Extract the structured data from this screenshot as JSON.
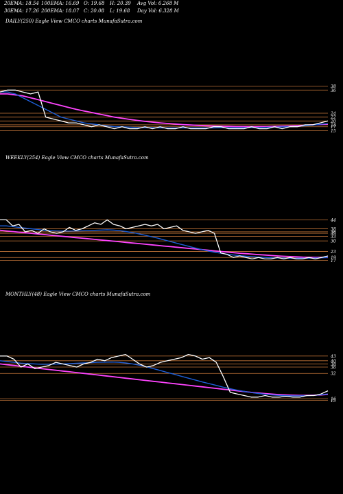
{
  "header": {
    "ema20": "20EMA: 18.54",
    "ema100": "100EMA: 16.69",
    "open": "O: 19.68",
    "high": "H: 20.39",
    "avg_vol": "Avg Vol: 6.268  M",
    "ema30": "30EMA: 17.26",
    "ema200": "200EMA: 18.07",
    "close": "C: 20.08",
    "low": "L: 19.68",
    "day_vol": "Day Vol: 6.328  M"
  },
  "colors": {
    "background": "#000000",
    "price": "#ffffff",
    "ema_fast": "#1e5fd8",
    "ema_slow": "#ff44ff",
    "level_line": "#c8783a",
    "grid_light": "#f2c8a0"
  },
  "chart_data": [
    {
      "type": "line",
      "title": "DAILY(250) Eagle  View  CMCO charts MunafaSutra.com",
      "right_labels": [
        "38",
        "36",
        "24",
        "22",
        "20",
        "18",
        "17",
        "15"
      ],
      "series": [
        {
          "values": [
            35,
            36,
            36,
            35,
            34,
            35,
            22,
            21,
            20,
            19,
            19,
            18,
            17,
            18,
            17,
            16,
            17,
            16,
            16,
            17,
            16,
            17,
            16,
            16,
            17,
            16,
            16,
            16,
            17,
            17,
            16,
            16,
            16,
            17,
            16,
            16,
            17,
            16,
            17,
            17,
            18,
            18,
            19,
            20
          ]
        },
        {
          "values": [
            35,
            35,
            34,
            32,
            30,
            28,
            26,
            24,
            22,
            21,
            20,
            19,
            18.5,
            18,
            17.5,
            17,
            17,
            16.8,
            16.6,
            16.5,
            16.5,
            16.4,
            16.4,
            16.4,
            16.4,
            16.4,
            16.4,
            16.4,
            16.4,
            16.5,
            16.5,
            16.5,
            16.5,
            16.6,
            16.6,
            16.7,
            16.8,
            16.9,
            17,
            17.2,
            17.5,
            17.9,
            18.3,
            18.6
          ]
        },
        {
          "values": [
            34,
            34,
            33.5,
            33,
            32,
            31,
            30,
            29,
            28,
            27,
            26,
            25.2,
            24.4,
            23.6,
            22.8,
            22,
            21.4,
            20.8,
            20.3,
            19.8,
            19.4,
            19,
            18.7,
            18.4,
            18.1,
            17.9,
            17.7,
            17.5,
            17.4,
            17.3,
            17.2,
            17.1,
            17.1,
            17.1,
            17.1,
            17.1,
            17.2,
            17.3,
            17.4,
            17.6,
            17.8,
            18,
            18.2,
            18.4
          ]
        }
      ]
    },
    {
      "type": "line",
      "title": "WEEKLY(254) Eagle  View  CMCO charts MunafaSutra.com",
      "right_labels": [
        "44",
        "38",
        "36",
        "35",
        "33",
        "30",
        "23",
        "19",
        "17"
      ],
      "series": [
        {
          "values": [
            44,
            44,
            40,
            41,
            36,
            37,
            35,
            38,
            36,
            35,
            36,
            39,
            37,
            38,
            40,
            42,
            41,
            44,
            41,
            40,
            38,
            39,
            40,
            41,
            40,
            41,
            38,
            39,
            40,
            37,
            36,
            35,
            36,
            37,
            35,
            22,
            21,
            19,
            20,
            19,
            18,
            19,
            18,
            18,
            19,
            18,
            19,
            18,
            18,
            19,
            18,
            19,
            20
          ]
        },
        {
          "values": [
            40,
            40,
            39.5,
            39,
            38.5,
            38,
            37.5,
            37,
            36.8,
            36.6,
            36.5,
            36.5,
            36.6,
            36.7,
            36.8,
            37,
            37.2,
            37.4,
            37.2,
            36.8,
            36.2,
            35.5,
            34.7,
            33.8,
            32.8,
            31.8,
            30.7,
            29.6,
            28.5,
            27.4,
            26.3,
            25.2,
            24.2,
            23.3,
            22.5,
            21.8,
            21.2,
            20.6,
            20.2,
            19.8,
            19.5,
            19.2,
            19,
            18.8,
            18.7,
            18.6,
            18.5,
            18.5,
            18.5,
            18.5,
            18.6,
            18.8,
            19
          ]
        },
        {
          "values": [
            37,
            36.6,
            36.2,
            35.8,
            35.4,
            35,
            34.6,
            34.2,
            33.8,
            33.4,
            33,
            32.6,
            32.2,
            31.8,
            31.4,
            31,
            30.6,
            30.2,
            29.8,
            29.4,
            29,
            28.6,
            28.2,
            27.8,
            27.4,
            27,
            26.6,
            26.2,
            25.8,
            25.4,
            25,
            24.6,
            24.2,
            23.8,
            23.4,
            23,
            22.6,
            22.2,
            21.8,
            21.5,
            21.2,
            20.9,
            20.6,
            20.3,
            20,
            19.8,
            19.6,
            19.4,
            19.2,
            19.1,
            19,
            19,
            19
          ]
        }
      ]
    },
    {
      "type": "line",
      "title": "MONTHLY(48) Eagle  View  CMCO charts MunafaSutra.com",
      "right_labels": [
        "43",
        "40",
        "38",
        "36",
        "32",
        "16",
        "15"
      ],
      "series": [
        {
          "values": [
            43,
            43,
            41,
            36,
            38,
            35,
            36,
            37,
            39,
            38,
            37,
            36,
            38,
            39,
            41,
            40,
            42,
            43,
            44,
            41,
            38,
            36,
            37,
            39,
            40,
            41,
            42,
            44,
            43,
            41,
            42,
            39,
            30,
            20,
            19,
            18,
            17,
            17,
            18,
            17,
            17,
            17.5,
            17,
            17,
            18,
            18,
            19,
            21
          ]
        },
        {
          "values": [
            40,
            39.5,
            39,
            38.5,
            38.2,
            38,
            37.8,
            37.8,
            37.9,
            38,
            38.2,
            38.4,
            38.6,
            38.8,
            39,
            39.1,
            39.2,
            39,
            38.6,
            38,
            37.2,
            36.2,
            35,
            33.8,
            32.6,
            31.4,
            30.2,
            29,
            27.8,
            26.6,
            25.5,
            24.4,
            23.3,
            22.3,
            21.4,
            20.6,
            19.9,
            19.3,
            18.8,
            18.4,
            18.1,
            17.9,
            17.8,
            17.8,
            17.9,
            18.1,
            18.5,
            19
          ]
        },
        {
          "values": [
            38,
            37.5,
            37,
            36.5,
            36,
            35.5,
            35,
            34.5,
            34,
            33.5,
            33,
            32.5,
            32,
            31.5,
            31,
            30.5,
            30,
            29.5,
            29,
            28.5,
            28,
            27.5,
            27,
            26.5,
            26,
            25.5,
            25,
            24.5,
            24,
            23.5,
            23,
            22.5,
            22,
            21.5,
            21,
            20.5,
            20,
            19.6,
            19.2,
            18.9,
            18.6,
            18.4,
            18.2,
            18.1,
            18.1,
            18.2,
            18.4,
            18.7
          ]
        }
      ]
    }
  ]
}
